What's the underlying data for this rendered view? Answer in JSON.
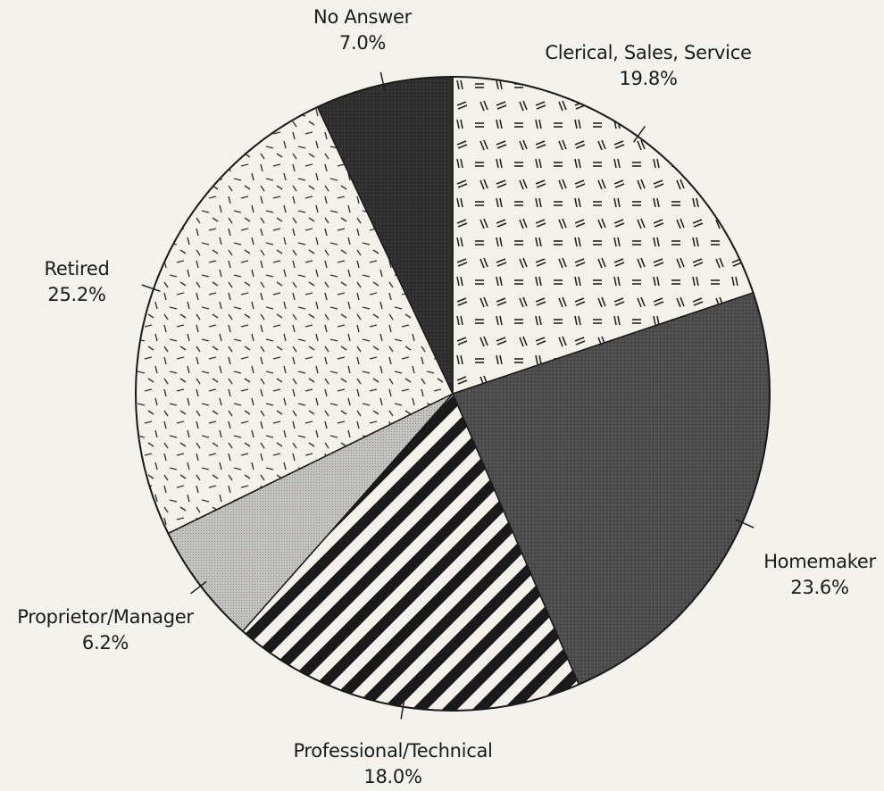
{
  "chart_data": {
    "type": "pie",
    "categories": [
      "Clerical, Sales, Service",
      "Homemaker",
      "Professional/Technical",
      "Proprietor/Manager",
      "Retired",
      "No Answer"
    ],
    "values": [
      19.8,
      23.6,
      18.0,
      6.2,
      25.2,
      7.0
    ],
    "value_labels": [
      "19.8%",
      "23.6%",
      "18.0%",
      "6.2%",
      "25.2%",
      "7.0%"
    ],
    "colors": [
      "#f3f1ea",
      "#4a4a4a",
      "#f3f1ea",
      "#c4c3bf",
      "#f3f1ea",
      "#2e2e2e"
    ]
  }
}
